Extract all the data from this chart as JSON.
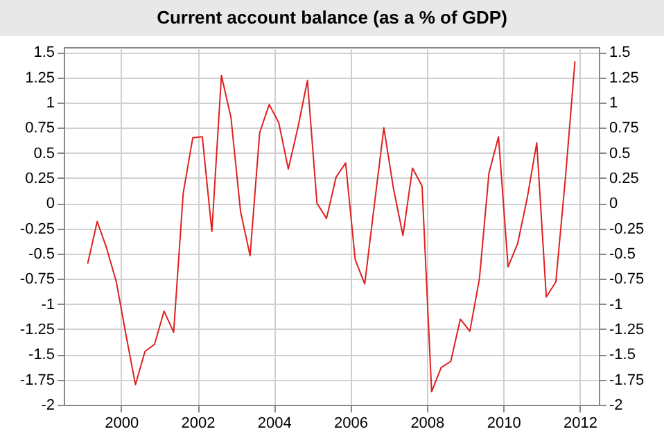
{
  "chart_data": {
    "type": "line",
    "title": "Current account balance (as a % of GDP)",
    "x": [
      1999.125,
      1999.375,
      1999.625,
      1999.875,
      2000.125,
      2000.375,
      2000.625,
      2000.875,
      2001.125,
      2001.375,
      2001.625,
      2001.875,
      2002.125,
      2002.375,
      2002.625,
      2002.875,
      2003.125,
      2003.375,
      2003.625,
      2003.875,
      2004.125,
      2004.375,
      2004.625,
      2004.875,
      2005.125,
      2005.375,
      2005.625,
      2005.875,
      2006.125,
      2006.375,
      2006.625,
      2006.875,
      2007.125,
      2007.375,
      2007.625,
      2007.875,
      2008.125,
      2008.375,
      2008.625,
      2008.875,
      2009.125,
      2009.375,
      2009.625,
      2009.875,
      2010.125,
      2010.375,
      2010.625,
      2010.875,
      2011.125,
      2011.375,
      2011.625,
      2011.875
    ],
    "series": [
      {
        "color": "#e02020",
        "values": [
          -0.6,
          -0.18,
          -0.45,
          -0.78,
          -1.3,
          -1.8,
          -1.47,
          -1.4,
          -1.07,
          -1.28,
          0.1,
          0.65,
          0.66,
          -0.28,
          1.27,
          0.85,
          -0.08,
          -0.52,
          0.7,
          0.98,
          0.8,
          0.34,
          0.75,
          1.22,
          0.0,
          -0.15,
          0.26,
          0.4,
          -0.56,
          -0.8,
          -0.02,
          0.75,
          0.15,
          -0.32,
          0.35,
          0.17,
          -1.87,
          -1.63,
          -1.57,
          -1.15,
          -1.27,
          -0.75,
          0.3,
          0.66,
          -0.63,
          -0.4,
          0.05,
          0.6,
          -0.93,
          -0.78,
          0.25,
          1.41
        ]
      }
    ],
    "xlim": [
      1998.5,
      2012.5
    ],
    "xticks": [
      2000,
      2002,
      2004,
      2006,
      2008,
      2010,
      2012
    ],
    "ylim": [
      -2,
      1.55
    ],
    "yticks": [
      -2,
      -1.75,
      -1.5,
      -1.25,
      -1,
      -0.75,
      -0.5,
      -0.25,
      0,
      0.25,
      0.5,
      0.75,
      1,
      1.25,
      1.5
    ],
    "y2lim": [
      -2,
      1.55
    ],
    "y2ticks": [
      -2,
      -1.75,
      -1.5,
      -1.25,
      -1,
      -0.75,
      -0.5,
      -0.25,
      0,
      0.25,
      0.5,
      0.75,
      1,
      1.25,
      1.5
    ],
    "grid": true,
    "marker": "none",
    "line_style": "solid"
  }
}
